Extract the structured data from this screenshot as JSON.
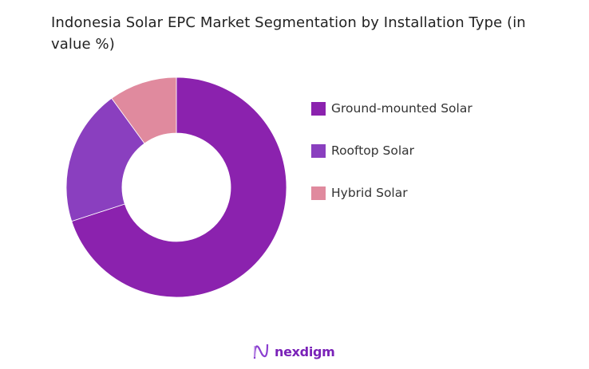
{
  "chart_data": {
    "type": "pie",
    "variant": "donut",
    "title": "Indonesia Solar EPC Market Segmentation by Installation Type (in value %)",
    "categories": [
      "Ground-mounted Solar",
      "Rooftop Solar",
      "Hybrid Solar"
    ],
    "values": [
      70,
      20,
      10
    ],
    "colors": [
      "#8B22AE",
      "#8A3FBF",
      "#E08A9E"
    ],
    "start_angle": "12 o'clock",
    "direction": "clockwise",
    "legend": "right"
  },
  "brand": {
    "name": "nexdigm",
    "color": "#7A22B8"
  }
}
